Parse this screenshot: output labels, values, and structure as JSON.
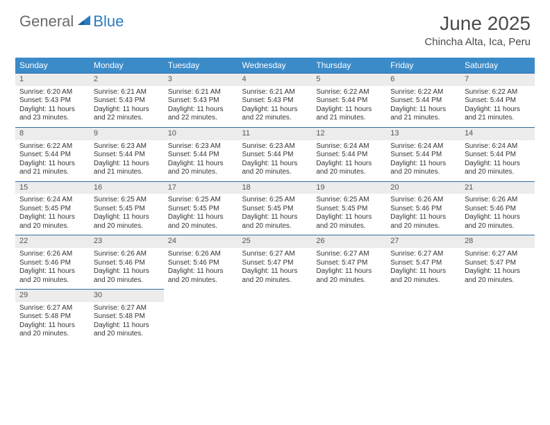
{
  "brand": {
    "word1": "General",
    "word2": "Blue"
  },
  "colors": {
    "header_bg": "#3b8bc9",
    "header_text": "#ffffff",
    "daynum_bg": "#ececec",
    "daynum_text": "#555555",
    "week_divider": "#2f6fa6",
    "body_text": "#333333",
    "title_text": "#4a4a4a",
    "brand_gray": "#6a6a6a",
    "brand_blue": "#2b7bbf"
  },
  "title": "June 2025",
  "location": "Chincha Alta, Ica, Peru",
  "weekdays": [
    "Sunday",
    "Monday",
    "Tuesday",
    "Wednesday",
    "Thursday",
    "Friday",
    "Saturday"
  ],
  "weeks": [
    [
      {
        "n": "1",
        "sunrise": "6:20 AM",
        "sunset": "5:43 PM",
        "daylight": "11 hours and 23 minutes."
      },
      {
        "n": "2",
        "sunrise": "6:21 AM",
        "sunset": "5:43 PM",
        "daylight": "11 hours and 22 minutes."
      },
      {
        "n": "3",
        "sunrise": "6:21 AM",
        "sunset": "5:43 PM",
        "daylight": "11 hours and 22 minutes."
      },
      {
        "n": "4",
        "sunrise": "6:21 AM",
        "sunset": "5:43 PM",
        "daylight": "11 hours and 22 minutes."
      },
      {
        "n": "5",
        "sunrise": "6:22 AM",
        "sunset": "5:44 PM",
        "daylight": "11 hours and 21 minutes."
      },
      {
        "n": "6",
        "sunrise": "6:22 AM",
        "sunset": "5:44 PM",
        "daylight": "11 hours and 21 minutes."
      },
      {
        "n": "7",
        "sunrise": "6:22 AM",
        "sunset": "5:44 PM",
        "daylight": "11 hours and 21 minutes."
      }
    ],
    [
      {
        "n": "8",
        "sunrise": "6:22 AM",
        "sunset": "5:44 PM",
        "daylight": "11 hours and 21 minutes."
      },
      {
        "n": "9",
        "sunrise": "6:23 AM",
        "sunset": "5:44 PM",
        "daylight": "11 hours and 21 minutes."
      },
      {
        "n": "10",
        "sunrise": "6:23 AM",
        "sunset": "5:44 PM",
        "daylight": "11 hours and 20 minutes."
      },
      {
        "n": "11",
        "sunrise": "6:23 AM",
        "sunset": "5:44 PM",
        "daylight": "11 hours and 20 minutes."
      },
      {
        "n": "12",
        "sunrise": "6:24 AM",
        "sunset": "5:44 PM",
        "daylight": "11 hours and 20 minutes."
      },
      {
        "n": "13",
        "sunrise": "6:24 AM",
        "sunset": "5:44 PM",
        "daylight": "11 hours and 20 minutes."
      },
      {
        "n": "14",
        "sunrise": "6:24 AM",
        "sunset": "5:44 PM",
        "daylight": "11 hours and 20 minutes."
      }
    ],
    [
      {
        "n": "15",
        "sunrise": "6:24 AM",
        "sunset": "5:45 PM",
        "daylight": "11 hours and 20 minutes."
      },
      {
        "n": "16",
        "sunrise": "6:25 AM",
        "sunset": "5:45 PM",
        "daylight": "11 hours and 20 minutes."
      },
      {
        "n": "17",
        "sunrise": "6:25 AM",
        "sunset": "5:45 PM",
        "daylight": "11 hours and 20 minutes."
      },
      {
        "n": "18",
        "sunrise": "6:25 AM",
        "sunset": "5:45 PM",
        "daylight": "11 hours and 20 minutes."
      },
      {
        "n": "19",
        "sunrise": "6:25 AM",
        "sunset": "5:45 PM",
        "daylight": "11 hours and 20 minutes."
      },
      {
        "n": "20",
        "sunrise": "6:26 AM",
        "sunset": "5:46 PM",
        "daylight": "11 hours and 20 minutes."
      },
      {
        "n": "21",
        "sunrise": "6:26 AM",
        "sunset": "5:46 PM",
        "daylight": "11 hours and 20 minutes."
      }
    ],
    [
      {
        "n": "22",
        "sunrise": "6:26 AM",
        "sunset": "5:46 PM",
        "daylight": "11 hours and 20 minutes."
      },
      {
        "n": "23",
        "sunrise": "6:26 AM",
        "sunset": "5:46 PM",
        "daylight": "11 hours and 20 minutes."
      },
      {
        "n": "24",
        "sunrise": "6:26 AM",
        "sunset": "5:46 PM",
        "daylight": "11 hours and 20 minutes."
      },
      {
        "n": "25",
        "sunrise": "6:27 AM",
        "sunset": "5:47 PM",
        "daylight": "11 hours and 20 minutes."
      },
      {
        "n": "26",
        "sunrise": "6:27 AM",
        "sunset": "5:47 PM",
        "daylight": "11 hours and 20 minutes."
      },
      {
        "n": "27",
        "sunrise": "6:27 AM",
        "sunset": "5:47 PM",
        "daylight": "11 hours and 20 minutes."
      },
      {
        "n": "28",
        "sunrise": "6:27 AM",
        "sunset": "5:47 PM",
        "daylight": "11 hours and 20 minutes."
      }
    ],
    [
      {
        "n": "29",
        "sunrise": "6:27 AM",
        "sunset": "5:48 PM",
        "daylight": "11 hours and 20 minutes."
      },
      {
        "n": "30",
        "sunrise": "6:27 AM",
        "sunset": "5:48 PM",
        "daylight": "11 hours and 20 minutes."
      },
      null,
      null,
      null,
      null,
      null
    ]
  ],
  "labels": {
    "sunrise": "Sunrise:",
    "sunset": "Sunset:",
    "daylight": "Daylight:"
  }
}
